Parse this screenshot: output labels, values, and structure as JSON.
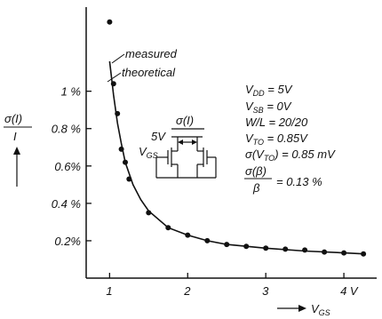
{
  "chart_data": {
    "type": "scatter",
    "x": [
      1.0,
      1.05,
      1.1,
      1.15,
      1.2,
      1.25,
      1.5,
      1.75,
      2.0,
      2.25,
      2.5,
      2.75,
      3.0,
      3.25,
      3.5,
      3.75,
      4.0,
      4.25
    ],
    "y": [
      1.37,
      1.04,
      0.88,
      0.69,
      0.62,
      0.53,
      0.35,
      0.27,
      0.23,
      0.2,
      0.18,
      0.17,
      0.16,
      0.155,
      0.15,
      0.14,
      0.135,
      0.13
    ],
    "theoretical": {
      "x": [
        1.0,
        1.05,
        1.1,
        1.15,
        1.2,
        1.3,
        1.4,
        1.5,
        1.75,
        2.0,
        2.25,
        2.5,
        3.0,
        3.5,
        4.0,
        4.25
      ],
      "y": [
        1.16,
        0.98,
        0.83,
        0.72,
        0.62,
        0.5,
        0.42,
        0.36,
        0.27,
        0.23,
        0.2,
        0.18,
        0.16,
        0.145,
        0.135,
        0.13
      ]
    },
    "xlim": [
      0.7,
      4.42
    ],
    "ylim": [
      0.0,
      1.45
    ],
    "xticks": [
      1,
      2,
      3,
      4
    ],
    "xtick_labels": [
      "1",
      "2",
      "3",
      "4 V"
    ],
    "yticks": [
      0.2,
      0.4,
      0.6,
      0.8,
      1.0
    ],
    "ytick_labels": [
      "0.2%",
      "0.4 %",
      "0.6%",
      "0.8 %",
      "1 %"
    ],
    "xlabel": "V_GS",
    "ylabel_num": "σ(I)",
    "ylabel_den": "I",
    "legend": {
      "measured": "measured",
      "theoretical": "theoretical"
    },
    "grid": false
  },
  "params": {
    "vdd": "= 5V",
    "vsb": "= 0V",
    "wl": "W/L = 20/20",
    "vto": "= 0.85V",
    "sigma_vto": "= 0.85 mV",
    "sigma_beta_num": "σ(β)",
    "sigma_beta_den": "β",
    "sigma_beta_val": "= 0.13 %"
  },
  "schematic": {
    "supply": "5V",
    "current": "σ(I)",
    "gate": "V",
    "gate_sub": "GS"
  },
  "colors": {
    "ink": "#111111",
    "background": "#ffffff"
  }
}
